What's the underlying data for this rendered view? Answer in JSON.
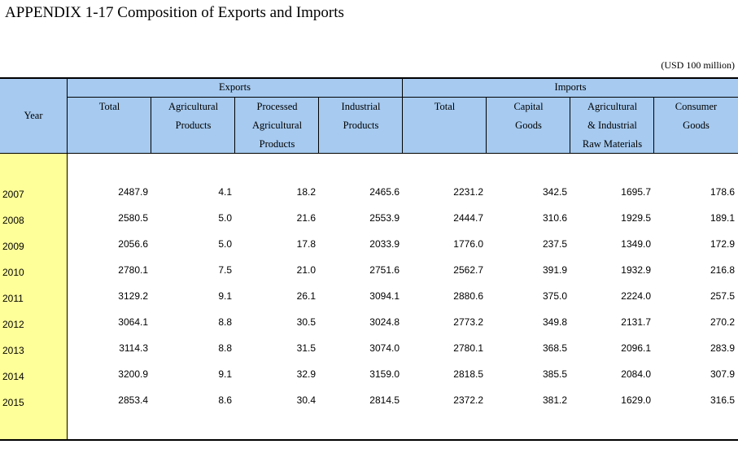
{
  "title": "APPENDIX 1-17  Composition of Exports and Imports",
  "unit": "(USD 100 million)",
  "header": {
    "year": "Year",
    "exports": "Exports",
    "imports": "Imports",
    "columns": [
      [
        "Total"
      ],
      [
        "Agricultural",
        "Products"
      ],
      [
        "Processed",
        "Agricultural",
        "Products"
      ],
      [
        "Industrial",
        "Products"
      ],
      [
        "Total"
      ],
      [
        "Capital",
        "Goods"
      ],
      [
        "Agricultural",
        "& Industrial",
        "Raw Materials"
      ],
      [
        "Consumer",
        "Goods"
      ]
    ]
  },
  "rows": [
    {
      "year": "2007",
      "values": [
        "2487.9",
        "4.1",
        "18.2",
        "2465.6",
        "2231.2",
        "342.5",
        "1695.7",
        "178.6"
      ]
    },
    {
      "year": "2008",
      "values": [
        "2580.5",
        "5.0",
        "21.6",
        "2553.9",
        "2444.7",
        "310.6",
        "1929.5",
        "189.1"
      ]
    },
    {
      "year": "2009",
      "values": [
        "2056.6",
        "5.0",
        "17.8",
        "2033.9",
        "1776.0",
        "237.5",
        "1349.0",
        "172.9"
      ]
    },
    {
      "year": "2010",
      "values": [
        "2780.1",
        "7.5",
        "21.0",
        "2751.6",
        "2562.7",
        "391.9",
        "1932.9",
        "216.8"
      ]
    },
    {
      "year": "2011",
      "values": [
        "3129.2",
        "9.1",
        "26.1",
        "3094.1",
        "2880.6",
        "375.0",
        "2224.0",
        "257.5"
      ]
    },
    {
      "year": "2012",
      "values": [
        "3064.1",
        "8.8",
        "30.5",
        "3024.8",
        "2773.2",
        "349.8",
        "2131.7",
        "270.2"
      ]
    },
    {
      "year": "2013",
      "values": [
        "3114.3",
        "8.8",
        "31.5",
        "3074.0",
        "2780.1",
        "368.5",
        "2096.1",
        "283.9"
      ]
    },
    {
      "year": "2014",
      "values": [
        "3200.9",
        "9.1",
        "32.9",
        "3159.0",
        "2818.5",
        "385.5",
        "2084.0",
        "307.9"
      ]
    },
    {
      "year": "2015",
      "values": [
        "2853.4",
        "8.6",
        "30.4",
        "2814.5",
        "2372.2",
        "381.2",
        "1629.0",
        "316.5"
      ]
    }
  ]
}
